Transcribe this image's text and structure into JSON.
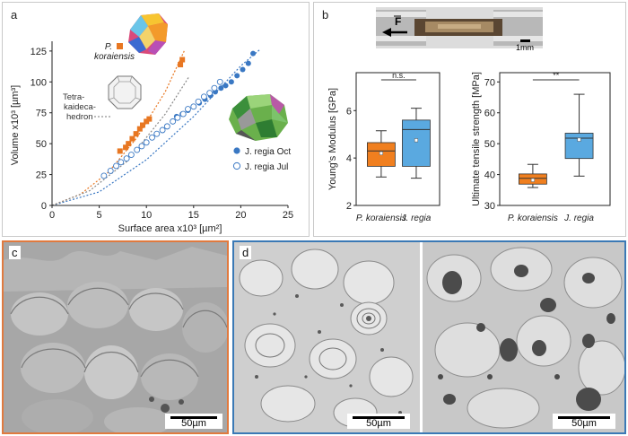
{
  "panel_a": {
    "letter": "a",
    "label_p_koraiensis_italic": "P.",
    "label_p_koraiensis_line2": "koraiensis",
    "label_tetra_line1": "Tetra-",
    "label_tetra_line2": "kaideca-",
    "label_tetra_line3": "hedron",
    "legend_oct": "J. regia Oct",
    "legend_jul": "J. regia Jul"
  },
  "panel_b": {
    "letter": "b",
    "force_label": "F",
    "scale_label": "1mm"
  },
  "panel_c": {
    "letter": "c",
    "scale_label": "50µm"
  },
  "panel_d": {
    "letter": "d",
    "scale_label_left": "50µm",
    "scale_label_right": "50µm"
  },
  "colors": {
    "orange": "#e87722",
    "blue": "#3a78c3",
    "box_blue": "#5aa9e0",
    "box_orange": "#f07f1f"
  },
  "chart_data": [
    {
      "type": "scatter",
      "xlabel": "Surface area x10³ [µm²]",
      "ylabel": "Volume x10³ [µm³]",
      "xlim": [
        0,
        25
      ],
      "ylim": [
        0,
        130
      ],
      "xticks": [
        "0",
        "5",
        "10",
        "15",
        "20",
        "25"
      ],
      "yticks": [
        "0",
        "25",
        "50",
        "75",
        "100",
        "125"
      ],
      "series": [
        {
          "name": "P. koraiensis",
          "marker": "square",
          "color": "#e87722",
          "x": [
            7.2,
            7.8,
            8.1,
            8.5,
            8.9,
            9.3,
            9.6,
            10.0,
            10.3,
            13.6,
            13.8
          ],
          "y": [
            44,
            47,
            50,
            54,
            58,
            62,
            65,
            68,
            70,
            114,
            118
          ]
        },
        {
          "name": "J. regia Oct",
          "marker": "filled-circle",
          "color": "#3a78c3",
          "x": [
            13.2,
            13.8,
            14.4,
            15.0,
            15.6,
            16.2,
            16.8,
            17.3,
            17.9,
            18.4,
            19.0,
            19.6,
            20.2,
            20.8,
            21.3
          ],
          "y": [
            72,
            74,
            77,
            80,
            83,
            86,
            89,
            92,
            95,
            97,
            100,
            105,
            110,
            115,
            123
          ]
        },
        {
          "name": "J. regia Jul",
          "marker": "open-circle",
          "color": "#3a78c3",
          "x": [
            5.5,
            6.2,
            6.8,
            7.3,
            7.9,
            8.4,
            9.0,
            9.5,
            10.0,
            10.6,
            11.1,
            11.7,
            12.2,
            12.8,
            13.3,
            13.9,
            14.4,
            15.0,
            15.5,
            16.1,
            16.7,
            17.2,
            17.8
          ],
          "y": [
            24,
            28,
            32,
            35,
            38,
            41,
            45,
            48,
            51,
            55,
            58,
            61,
            64,
            68,
            71,
            74,
            78,
            80,
            84,
            88,
            91,
            95,
            100
          ]
        }
      ],
      "fit_curves": [
        {
          "color": "#e87722",
          "x": [
            0,
            3,
            6,
            9,
            12,
            14
          ],
          "y": [
            0,
            9,
            27,
            55,
            92,
            125
          ]
        },
        {
          "color": "#3a78c3",
          "x": [
            0,
            5,
            10,
            15,
            20,
            22
          ],
          "y": [
            0,
            11,
            37,
            72,
            113,
            126
          ]
        },
        {
          "color": "#888888",
          "x": [
            0,
            4,
            8,
            12,
            14.5
          ],
          "y": [
            0,
            12,
            36,
            74,
            104
          ]
        }
      ]
    },
    {
      "type": "box",
      "ylabel": "Young's Modulus [GPa]",
      "ylim": [
        2,
        7.6
      ],
      "yticks": [
        "2",
        "4",
        "6"
      ],
      "categories": [
        "P. koraiensis",
        "J. regia"
      ],
      "significance": "n.s.",
      "boxes": [
        {
          "min": 3.2,
          "q1": 3.65,
          "median": 4.3,
          "q3": 4.65,
          "max": 5.15,
          "mean": 4.2,
          "color": "#f07f1f"
        },
        {
          "min": 3.15,
          "q1": 3.65,
          "median": 5.2,
          "q3": 5.6,
          "max": 6.1,
          "mean": 4.75,
          "color": "#5aa9e0"
        }
      ]
    },
    {
      "type": "box",
      "ylabel": "Ultimate tensile strength [MPa]",
      "ylim": [
        30,
        73
      ],
      "yticks": [
        "30",
        "40",
        "50",
        "60",
        "70"
      ],
      "categories": [
        "P. koraiensis",
        "J. regia"
      ],
      "significance": "**",
      "boxes": [
        {
          "min": 35.8,
          "q1": 36.9,
          "median": 38.8,
          "q3": 40.2,
          "max": 43.3,
          "mean": 38.2,
          "color": "#f07f1f"
        },
        {
          "min": 39.5,
          "q1": 45.2,
          "median": 51.8,
          "q3": 53.4,
          "max": 66.0,
          "mean": 51.3,
          "color": "#5aa9e0"
        }
      ]
    }
  ]
}
